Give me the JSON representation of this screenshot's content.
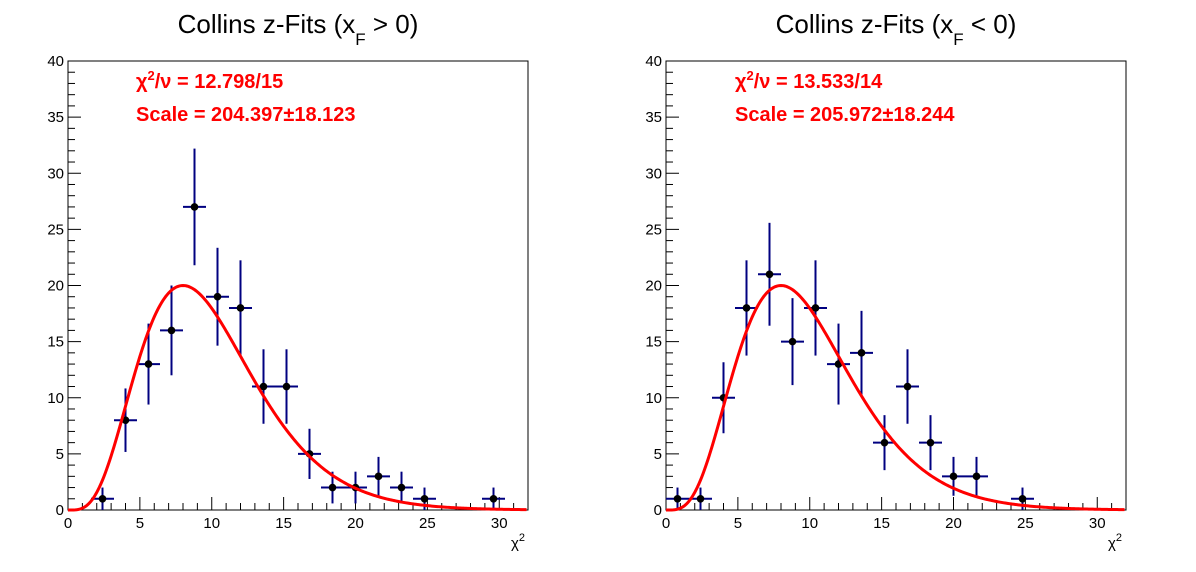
{
  "chart_data": [
    {
      "type": "scatter",
      "title_main": "Collins z-Fits (x",
      "title_sub": "F",
      "title_rest": " > 0)",
      "xlabel_base": "χ",
      "xlabel_sup": "2",
      "xlim": [
        0,
        32
      ],
      "ylim": [
        0,
        40
      ],
      "bin_half_width": 0.8,
      "x_ticks": [
        "0",
        "5",
        "10",
        "15",
        "20",
        "25",
        "30"
      ],
      "y_ticks": [
        "0",
        "5",
        "10",
        "15",
        "20",
        "25",
        "30",
        "35",
        "40"
      ],
      "annotation_chi_a": "χ",
      "annotation_chi_sup": "2",
      "annotation_chi_b": "/ν = 12.798/15",
      "annotation_scale": "Scale = 204.397±18.123",
      "points": {
        "x": [
          2.4,
          4.0,
          5.6,
          7.2,
          8.8,
          10.4,
          12.0,
          13.6,
          15.2,
          16.8,
          18.4,
          20.0,
          21.6,
          23.2,
          24.8,
          29.6
        ],
        "y": [
          1,
          8,
          13,
          16,
          27,
          19,
          18,
          11,
          11,
          5,
          2,
          2,
          3,
          2,
          1,
          1
        ]
      },
      "fit_color": "#ff0000",
      "point_color": "#000000",
      "error_color": "#000080"
    },
    {
      "type": "scatter",
      "title_main": "Collins z-Fits (x",
      "title_sub": "F",
      "title_rest": " < 0)",
      "xlabel_base": "χ",
      "xlabel_sup": "2",
      "xlim": [
        0,
        32
      ],
      "ylim": [
        0,
        40
      ],
      "bin_half_width": 0.8,
      "x_ticks": [
        "0",
        "5",
        "10",
        "15",
        "20",
        "25",
        "30"
      ],
      "y_ticks": [
        "0",
        "5",
        "10",
        "15",
        "20",
        "25",
        "30",
        "35",
        "40"
      ],
      "annotation_chi_a": "χ",
      "annotation_chi_sup": "2",
      "annotation_chi_b": "/ν = 13.533/14",
      "annotation_scale": "Scale = 205.972±18.244",
      "points": {
        "x": [
          0.8,
          2.4,
          4.0,
          5.6,
          7.2,
          8.8,
          10.4,
          12.0,
          13.6,
          15.2,
          16.8,
          18.4,
          20.0,
          21.6,
          24.8
        ],
        "y": [
          1,
          1,
          10,
          18,
          21,
          15,
          18,
          13,
          14,
          6,
          11,
          6,
          3,
          3,
          1
        ]
      },
      "fit_color": "#ff0000",
      "point_color": "#000000",
      "error_color": "#000080"
    }
  ]
}
